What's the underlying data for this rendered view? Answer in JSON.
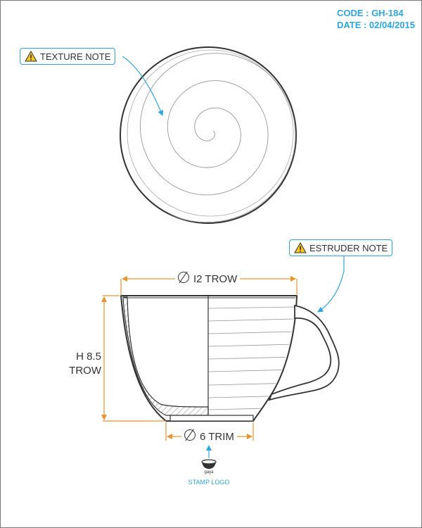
{
  "header": {
    "code": "CODE : GH-184",
    "date": "DATE : 02/04/2015"
  },
  "callouts": {
    "texture": "TEXTURE NOTE",
    "extruder": "ESTRUDER NOTE"
  },
  "dimensions": {
    "top_diameter": "I2 TROW",
    "bottom_diameter": "6 TRIM",
    "height_line1": "H 8.5",
    "height_line2": "TROW"
  },
  "stamp": {
    "small_text": "gaya",
    "label": "STAMP LOGO"
  },
  "colors": {
    "accent": "#2aa7e0",
    "dimension": "#f0912a",
    "line": "#333333",
    "frame": "#7a7a7a"
  },
  "icons": [
    "warning-icon",
    "diameter-icon",
    "bowl-stamp-icon",
    "arrow-up-icon"
  ]
}
